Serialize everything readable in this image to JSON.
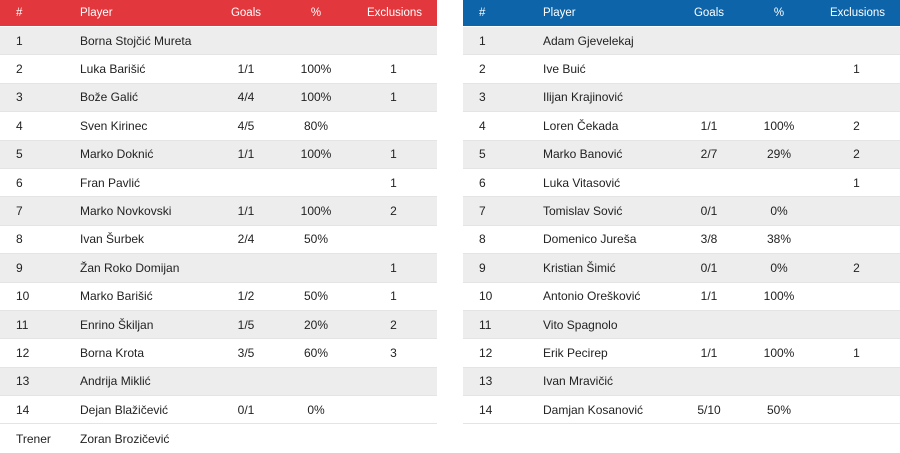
{
  "columns": {
    "num": "#",
    "player": "Player",
    "goals": "Goals",
    "pct": "%",
    "exclusions": "Exclusions"
  },
  "colors": {
    "home_header": "#e2373d",
    "away_header": "#0d64a8"
  },
  "home": {
    "players": [
      {
        "num": "1",
        "name": "Borna Stojčić Mureta",
        "goals": "",
        "pct": "",
        "exc": ""
      },
      {
        "num": "2",
        "name": "Luka Barišić",
        "goals": "1/1",
        "pct": "100%",
        "exc": "1"
      },
      {
        "num": "3",
        "name": "Bože Galić",
        "goals": "4/4",
        "pct": "100%",
        "exc": "1"
      },
      {
        "num": "4",
        "name": "Sven Kirinec",
        "goals": "4/5",
        "pct": "80%",
        "exc": ""
      },
      {
        "num": "5",
        "name": "Marko Doknić",
        "goals": "1/1",
        "pct": "100%",
        "exc": "1"
      },
      {
        "num": "6",
        "name": "Fran Pavlić",
        "goals": "",
        "pct": "",
        "exc": "1"
      },
      {
        "num": "7",
        "name": "Marko Novkovski",
        "goals": "1/1",
        "pct": "100%",
        "exc": "2"
      },
      {
        "num": "8",
        "name": "Ivan Šurbek",
        "goals": "2/4",
        "pct": "50%",
        "exc": ""
      },
      {
        "num": "9",
        "name": "Žan Roko Domijan",
        "goals": "",
        "pct": "",
        "exc": "1"
      },
      {
        "num": "10",
        "name": "Marko Barišić",
        "goals": "1/2",
        "pct": "50%",
        "exc": "1"
      },
      {
        "num": "11",
        "name": "Enrino Škiljan",
        "goals": "1/5",
        "pct": "20%",
        "exc": "2"
      },
      {
        "num": "12",
        "name": "Borna Krota",
        "goals": "3/5",
        "pct": "60%",
        "exc": "3"
      },
      {
        "num": "13",
        "name": "Andrija Miklić",
        "goals": "",
        "pct": "",
        "exc": ""
      },
      {
        "num": "14",
        "name": "Dejan Blažičević",
        "goals": "0/1",
        "pct": "0%",
        "exc": ""
      }
    ],
    "coach_label": "Trener",
    "coach_name": "Zoran Brozičević"
  },
  "away": {
    "players": [
      {
        "num": "1",
        "name": "Adam Gjevelekaj",
        "goals": "",
        "pct": "",
        "exc": ""
      },
      {
        "num": "2",
        "name": "Ive Buić",
        "goals": "",
        "pct": "",
        "exc": "1"
      },
      {
        "num": "3",
        "name": "Ilijan Krajinović",
        "goals": "",
        "pct": "",
        "exc": ""
      },
      {
        "num": "4",
        "name": "Loren Čekada",
        "goals": "1/1",
        "pct": "100%",
        "exc": "2"
      },
      {
        "num": "5",
        "name": "Marko Banović",
        "goals": "2/7",
        "pct": "29%",
        "exc": "2"
      },
      {
        "num": "6",
        "name": "Luka Vitasović",
        "goals": "",
        "pct": "",
        "exc": "1"
      },
      {
        "num": "7",
        "name": "Tomislav Sović",
        "goals": "0/1",
        "pct": "0%",
        "exc": ""
      },
      {
        "num": "8",
        "name": "Domenico Jureša",
        "goals": "3/8",
        "pct": "38%",
        "exc": ""
      },
      {
        "num": "9",
        "name": "Kristian Šimić",
        "goals": "0/1",
        "pct": "0%",
        "exc": "2"
      },
      {
        "num": "10",
        "name": "Antonio Orešković",
        "goals": "1/1",
        "pct": "100%",
        "exc": ""
      },
      {
        "num": "11",
        "name": "Vito Spagnolo",
        "goals": "",
        "pct": "",
        "exc": ""
      },
      {
        "num": "12",
        "name": "Erik Pecirep",
        "goals": "1/1",
        "pct": "100%",
        "exc": "1"
      },
      {
        "num": "13",
        "name": "Ivan Mravičić",
        "goals": "",
        "pct": "",
        "exc": ""
      },
      {
        "num": "14",
        "name": "Damjan Kosanović",
        "goals": "5/10",
        "pct": "50%",
        "exc": ""
      }
    ]
  }
}
